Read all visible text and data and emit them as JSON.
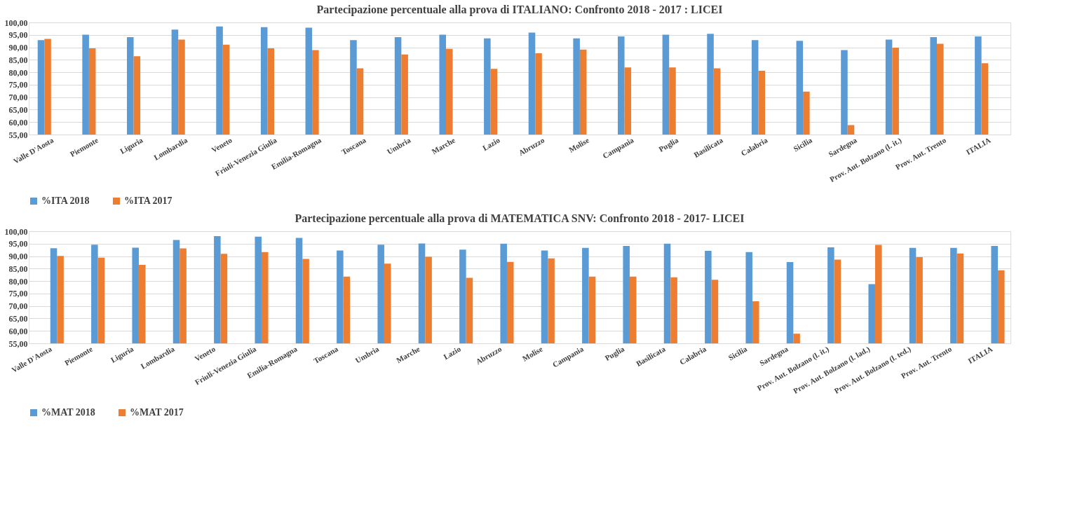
{
  "chart_data": [
    {
      "type": "bar",
      "title": "Partecipazione percentuale  alla prova di ITALIANO: Confronto 2018 - 2017 : LICEI",
      "categories": [
        "Valle D'Aosta",
        "Piemonte",
        "Liguria",
        "Lombardia",
        "Veneto",
        "Friuli-Venezia Giulia",
        "Emilia-Romagna",
        "Toscana",
        "Umbria",
        "Marche",
        "Lazio",
        "Abruzzo",
        "Molise",
        "Campania",
        "Puglia",
        "Basilicata",
        "Calabria",
        "Sicilia",
        "Sardegna",
        "Prov. Aut. Bolzano (l. it.)",
        "Prov. Aut. Trento",
        "ITALIA"
      ],
      "series": [
        {
          "name": "%ITA 2018",
          "color": "#5b9bd5",
          "values": [
            92.9,
            95.1,
            94.1,
            97.1,
            98.4,
            98.1,
            97.9,
            92.9,
            94.1,
            95.1,
            93.6,
            95.9,
            93.6,
            94.4,
            95.1,
            95.4,
            92.9,
            92.6,
            88.9,
            93.1,
            94.1,
            94.4
          ]
        },
        {
          "name": "%ITA 2017",
          "color": "#ed7d31",
          "values": [
            93.4,
            89.6,
            86.4,
            93.1,
            91.1,
            89.6,
            88.9,
            81.6,
            87.1,
            89.4,
            81.4,
            87.6,
            89.1,
            81.9,
            81.9,
            81.6,
            80.6,
            72.2,
            58.8,
            89.9,
            91.4,
            83.6
          ]
        }
      ],
      "ylim": [
        55,
        100
      ],
      "yticks": [
        {
          "value": 55,
          "label": "55,00"
        },
        {
          "value": 60,
          "label": "60,00"
        },
        {
          "value": 65,
          "label": "65,00"
        },
        {
          "value": 70,
          "label": "70,00"
        },
        {
          "value": 75,
          "label": "75,00"
        },
        {
          "value": 80,
          "label": "80,00"
        },
        {
          "value": 85,
          "label": "85,00"
        },
        {
          "value": 90,
          "label": "90,00"
        },
        {
          "value": 95,
          "label": "95,00"
        },
        {
          "value": 100,
          "label": "100,00"
        }
      ],
      "grid": "y",
      "legend": "bottom"
    },
    {
      "type": "bar",
      "title": "Partecipazione percentuale  alla prova di MATEMATICA SNV: Confronto 2018 - 2017-  LICEI",
      "categories": [
        "Valle D'Aosta",
        "Piemonte",
        "Liguria",
        "Lombardia",
        "Veneto",
        "Friuli-Venezia Giulia",
        "Emilia-Romagna",
        "Toscana",
        "Umbria",
        "Marche",
        "Lazio",
        "Abruzzo",
        "Molise",
        "Campania",
        "Puglia",
        "Basilicata",
        "Calabria",
        "Sicilia",
        "Sardegna",
        "Prov. Aut. Bolzano (l. it.)",
        "Prov. Aut. Bolzano (l. lad.)",
        "Prov. Aut. Bolzano (l. ted.)",
        "Prov. Aut. Trento",
        "ITALIA"
      ],
      "series": [
        {
          "name": "%MAT 2018",
          "color": "#5b9bd5",
          "values": [
            93.2,
            94.6,
            93.4,
            96.5,
            98.0,
            97.8,
            97.3,
            92.3,
            94.6,
            95.1,
            92.6,
            95.0,
            92.3,
            93.3,
            94.1,
            95.0,
            92.1,
            91.6,
            87.6,
            93.5,
            78.8,
            93.3,
            93.3,
            94.1
          ]
        },
        {
          "name": "%MAT 2017",
          "color": "#ed7d31",
          "values": [
            90.1,
            89.4,
            86.5,
            93.1,
            90.9,
            91.6,
            88.9,
            81.8,
            87.0,
            89.7,
            81.3,
            87.7,
            89.1,
            81.8,
            81.8,
            81.5,
            80.5,
            71.9,
            58.9,
            88.6,
            94.5,
            89.6,
            91.1,
            84.3
          ]
        }
      ],
      "ylim": [
        55,
        100
      ],
      "yticks": [
        {
          "value": 55,
          "label": "55,00"
        },
        {
          "value": 60,
          "label": "60,00"
        },
        {
          "value": 65,
          "label": "65,00"
        },
        {
          "value": 70,
          "label": "70,00"
        },
        {
          "value": 75,
          "label": "75,00"
        },
        {
          "value": 80,
          "label": "80,00"
        },
        {
          "value": 85,
          "label": "85,00"
        },
        {
          "value": 90,
          "label": "90,00"
        },
        {
          "value": 95,
          "label": "95,00"
        },
        {
          "value": 100,
          "label": "100,00"
        }
      ],
      "grid": "y",
      "legend": "bottom"
    }
  ]
}
